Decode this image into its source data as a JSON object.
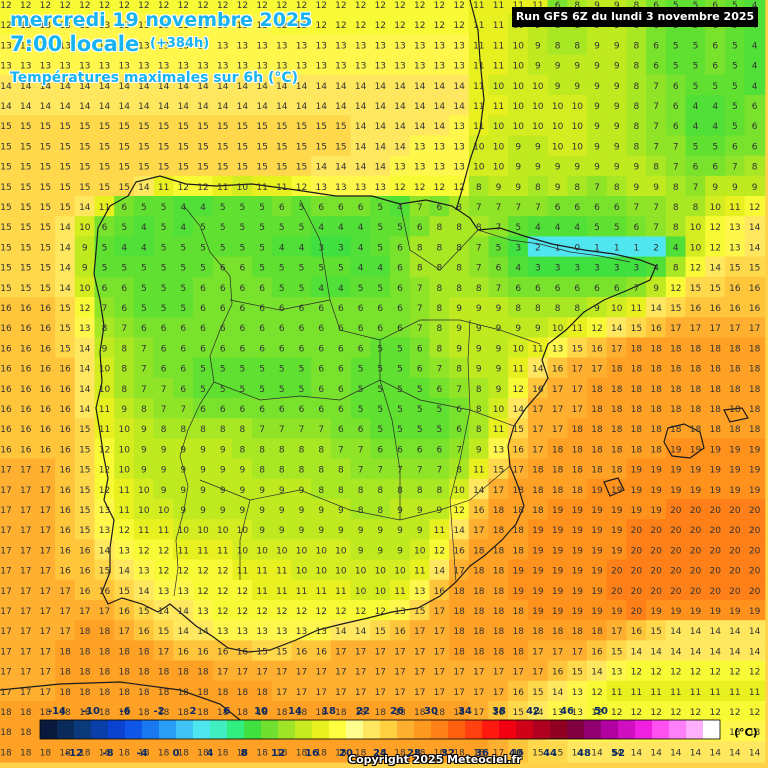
{
  "header": {
    "date": "mercredi 19 novembre 2025",
    "local_time": "7:00 locale",
    "lead_time": "(+384h)",
    "parameter": "Températures maximales sur 6h (°C)"
  },
  "run_info": "Run GFS 6Z du lundi 3 novembre 2025",
  "copyright": "Copyright 2025 Meteociel.fr",
  "legend": {
    "unit": "(°C)",
    "top_labels": [
      "-14",
      "-10",
      "-6",
      "-2",
      "2",
      "6",
      "10",
      "14",
      "18",
      "22",
      "26",
      "30",
      "34",
      "38",
      "42",
      "46",
      "50"
    ],
    "bottom_labels": [
      "-12",
      "-8",
      "-4",
      "0",
      "4",
      "8",
      "12",
      "16",
      "20",
      "24",
      "28",
      "32",
      "36",
      "40",
      "44",
      "48",
      "52"
    ],
    "colors": [
      "#0a1a3c",
      "#0a2a5a",
      "#0a3a7a",
      "#0a3ea8",
      "#0b43d0",
      "#1056e8",
      "#1a78f0",
      "#2a9ef4",
      "#40c4f6",
      "#50e6f0",
      "#40eec0",
      "#30ee80",
      "#40e040",
      "#70e030",
      "#a0e428",
      "#c8ea20",
      "#e8f020",
      "#ffff40",
      "#ffff90",
      "#ffe860",
      "#ffd040",
      "#ffb030",
      "#ff9a20",
      "#ff8018",
      "#ff6010",
      "#ff4010",
      "#ff1a10",
      "#f00010",
      "#d00018",
      "#b00020",
      "#900020",
      "#800040",
      "#900070",
      "#b000a0",
      "#d010c0",
      "#f020e0",
      "#ff50f0",
      "#ff80f8",
      "#ffb0fc",
      "#ffffff"
    ]
  },
  "colormap": {
    "stops": [
      [
        0,
        "#30ee80"
      ],
      [
        3,
        "#40e040"
      ],
      [
        5,
        "#60e030"
      ],
      [
        7,
        "#90e428"
      ],
      [
        9,
        "#c0ea20"
      ],
      [
        11,
        "#e8f020"
      ],
      [
        12.5,
        "#ffff40"
      ],
      [
        14,
        "#ffe860"
      ],
      [
        15.5,
        "#ffd040"
      ],
      [
        17,
        "#ffb030"
      ],
      [
        18.5,
        "#ff9a20"
      ],
      [
        20,
        "#ff8018"
      ]
    ],
    "cold_spot": "#50e6f0"
  },
  "map_values": [
    [
      12,
      12,
      12,
      12,
      12,
      12,
      12,
      12,
      12,
      12,
      12,
      12,
      12,
      12,
      12,
      12,
      12,
      12,
      12,
      12,
      12,
      12,
      12,
      12,
      11,
      11,
      11,
      11,
      6,
      8,
      9,
      9,
      8,
      6,
      5,
      5,
      6,
      5,
      4
    ],
    [
      12,
      13,
      13,
      13,
      13,
      13,
      13,
      13,
      13,
      13,
      13,
      13,
      13,
      13,
      12,
      12,
      12,
      12,
      12,
      12,
      12,
      12,
      12,
      12,
      11,
      11,
      10,
      9,
      8,
      8,
      9,
      9,
      8,
      6,
      5,
      5,
      6,
      5,
      4
    ],
    [
      13,
      13,
      13,
      13,
      13,
      13,
      13,
      13,
      13,
      13,
      13,
      13,
      13,
      13,
      13,
      13,
      13,
      13,
      13,
      13,
      13,
      13,
      13,
      13,
      11,
      11,
      10,
      9,
      8,
      8,
      9,
      9,
      8,
      6,
      5,
      5,
      6,
      5,
      4
    ],
    [
      13,
      13,
      13,
      13,
      13,
      13,
      13,
      13,
      13,
      13,
      13,
      13,
      13,
      13,
      13,
      13,
      13,
      13,
      13,
      13,
      13,
      13,
      13,
      13,
      11,
      11,
      10,
      9,
      9,
      9,
      9,
      9,
      8,
      6,
      5,
      5,
      6,
      5,
      4
    ],
    [
      14,
      14,
      14,
      14,
      14,
      14,
      14,
      14,
      14,
      14,
      14,
      14,
      14,
      14,
      14,
      14,
      14,
      14,
      14,
      14,
      14,
      14,
      14,
      14,
      11,
      10,
      10,
      10,
      9,
      9,
      9,
      9,
      8,
      7,
      6,
      5,
      5,
      5,
      4
    ],
    [
      14,
      14,
      14,
      14,
      14,
      14,
      14,
      14,
      14,
      14,
      14,
      14,
      14,
      14,
      14,
      14,
      14,
      14,
      14,
      14,
      14,
      14,
      14,
      14,
      11,
      11,
      10,
      10,
      10,
      10,
      9,
      9,
      8,
      7,
      6,
      4,
      4,
      5,
      6
    ],
    [
      15,
      15,
      15,
      15,
      15,
      15,
      15,
      15,
      15,
      15,
      15,
      15,
      15,
      15,
      15,
      15,
      15,
      15,
      14,
      14,
      14,
      14,
      14,
      13,
      11,
      10,
      10,
      10,
      10,
      10,
      9,
      9,
      8,
      7,
      6,
      4,
      4,
      5,
      6
    ],
    [
      15,
      15,
      15,
      15,
      15,
      15,
      15,
      15,
      15,
      15,
      15,
      15,
      15,
      15,
      15,
      15,
      15,
      15,
      14,
      14,
      14,
      13,
      13,
      13,
      10,
      10,
      9,
      9,
      10,
      10,
      9,
      9,
      8,
      7,
      7,
      5,
      5,
      6,
      6
    ],
    [
      15,
      15,
      15,
      15,
      15,
      15,
      15,
      15,
      15,
      15,
      15,
      15,
      15,
      15,
      15,
      15,
      14,
      14,
      14,
      14,
      13,
      13,
      13,
      13,
      10,
      10,
      9,
      9,
      9,
      9,
      9,
      9,
      9,
      8,
      7,
      6,
      6,
      7,
      8
    ],
    [
      15,
      15,
      15,
      15,
      15,
      15,
      15,
      14,
      11,
      12,
      12,
      11,
      10,
      11,
      11,
      12,
      13,
      13,
      13,
      13,
      12,
      12,
      12,
      12,
      8,
      9,
      9,
      8,
      9,
      8,
      7,
      8,
      9,
      9,
      8,
      7,
      9,
      9,
      9
    ],
    [
      15,
      15,
      15,
      15,
      14,
      11,
      6,
      5,
      5,
      4,
      4,
      5,
      5,
      5,
      6,
      5,
      6,
      6,
      6,
      5,
      4,
      7,
      6,
      8,
      7,
      7,
      7,
      7,
      6,
      6,
      6,
      6,
      7,
      7,
      8,
      8,
      10,
      11,
      12
    ],
    [
      15,
      15,
      15,
      14,
      10,
      6,
      5,
      4,
      5,
      4,
      5,
      5,
      5,
      5,
      5,
      5,
      4,
      4,
      4,
      5,
      5,
      6,
      8,
      8,
      8,
      7,
      5,
      4,
      4,
      4,
      5,
      5,
      6,
      7,
      8,
      10,
      12,
      13,
      14
    ],
    [
      15,
      15,
      15,
      14,
      9,
      5,
      4,
      4,
      5,
      5,
      5,
      5,
      5,
      5,
      4,
      4,
      3,
      3,
      4,
      5,
      6,
      8,
      8,
      8,
      7,
      5,
      3,
      2,
      1,
      0,
      1,
      1,
      1,
      2,
      4,
      10,
      12,
      13,
      14
    ],
    [
      15,
      15,
      15,
      14,
      9,
      5,
      5,
      5,
      5,
      5,
      5,
      6,
      6,
      5,
      5,
      5,
      5,
      5,
      4,
      4,
      6,
      8,
      8,
      8,
      7,
      6,
      4,
      3,
      3,
      3,
      3,
      3,
      3,
      4,
      8,
      12,
      14,
      15,
      15
    ],
    [
      15,
      15,
      15,
      14,
      10,
      6,
      6,
      5,
      5,
      5,
      6,
      6,
      6,
      6,
      5,
      5,
      4,
      4,
      5,
      5,
      6,
      7,
      8,
      8,
      8,
      7,
      6,
      6,
      6,
      6,
      6,
      6,
      7,
      9,
      12,
      15,
      15,
      16,
      16
    ],
    [
      16,
      16,
      16,
      15,
      12,
      7,
      6,
      5,
      5,
      5,
      6,
      6,
      6,
      6,
      6,
      6,
      6,
      6,
      6,
      6,
      6,
      7,
      8,
      9,
      9,
      9,
      8,
      8,
      8,
      8,
      9,
      10,
      11,
      14,
      15,
      16,
      16,
      16,
      16
    ],
    [
      16,
      16,
      16,
      15,
      13,
      8,
      7,
      6,
      6,
      6,
      6,
      6,
      6,
      6,
      6,
      6,
      6,
      6,
      6,
      6,
      6,
      7,
      8,
      9,
      9,
      9,
      9,
      9,
      10,
      11,
      12,
      14,
      15,
      16,
      17,
      17,
      17,
      17,
      17
    ],
    [
      16,
      16,
      16,
      15,
      14,
      9,
      8,
      7,
      6,
      6,
      6,
      6,
      6,
      6,
      6,
      6,
      6,
      6,
      6,
      5,
      5,
      6,
      8,
      9,
      9,
      9,
      10,
      11,
      13,
      15,
      16,
      17,
      18,
      18,
      18,
      18,
      18,
      18,
      18
    ],
    [
      16,
      16,
      16,
      16,
      14,
      10,
      8,
      7,
      6,
      6,
      5,
      5,
      5,
      5,
      5,
      5,
      6,
      6,
      5,
      5,
      5,
      6,
      7,
      8,
      9,
      9,
      11,
      14,
      16,
      17,
      17,
      18,
      18,
      18,
      18,
      18,
      18,
      18,
      18
    ],
    [
      16,
      16,
      16,
      16,
      14,
      10,
      8,
      7,
      7,
      6,
      5,
      5,
      5,
      5,
      5,
      5,
      6,
      6,
      5,
      5,
      5,
      5,
      6,
      7,
      8,
      9,
      12,
      16,
      17,
      17,
      18,
      18,
      18,
      18,
      18,
      18,
      18,
      18,
      18
    ],
    [
      16,
      16,
      16,
      16,
      14,
      11,
      9,
      8,
      7,
      7,
      6,
      6,
      6,
      6,
      6,
      6,
      6,
      6,
      5,
      5,
      5,
      5,
      5,
      6,
      8,
      10,
      14,
      17,
      17,
      17,
      18,
      18,
      18,
      18,
      18,
      18,
      18,
      18,
      18
    ],
    [
      16,
      16,
      16,
      16,
      15,
      11,
      10,
      9,
      8,
      8,
      8,
      8,
      8,
      7,
      7,
      7,
      7,
      6,
      6,
      5,
      5,
      5,
      5,
      6,
      8,
      11,
      15,
      17,
      17,
      18,
      18,
      18,
      18,
      18,
      18,
      18,
      18,
      18,
      18
    ],
    [
      16,
      16,
      16,
      16,
      15,
      12,
      10,
      9,
      9,
      9,
      9,
      9,
      8,
      8,
      8,
      8,
      8,
      7,
      7,
      6,
      6,
      6,
      6,
      7,
      9,
      13,
      16,
      17,
      18,
      18,
      18,
      18,
      18,
      18,
      19,
      19,
      19,
      19,
      19
    ],
    [
      17,
      17,
      17,
      16,
      15,
      12,
      10,
      9,
      9,
      9,
      9,
      9,
      9,
      8,
      8,
      8,
      8,
      8,
      7,
      7,
      7,
      7,
      7,
      8,
      11,
      15,
      17,
      18,
      18,
      18,
      18,
      18,
      19,
      19,
      19,
      19,
      19,
      19,
      19
    ],
    [
      17,
      17,
      17,
      16,
      15,
      12,
      11,
      10,
      9,
      9,
      9,
      9,
      9,
      9,
      9,
      9,
      8,
      8,
      8,
      8,
      8,
      8,
      8,
      10,
      14,
      17,
      18,
      18,
      18,
      18,
      19,
      19,
      19,
      19,
      19,
      19,
      19,
      19,
      19
    ],
    [
      17,
      17,
      17,
      16,
      15,
      13,
      11,
      10,
      10,
      9,
      9,
      9,
      9,
      9,
      9,
      9,
      9,
      9,
      8,
      8,
      9,
      9,
      9,
      12,
      16,
      18,
      18,
      18,
      19,
      19,
      19,
      19,
      19,
      19,
      20,
      20,
      20,
      20,
      20
    ],
    [
      17,
      17,
      17,
      16,
      15,
      13,
      12,
      11,
      11,
      10,
      10,
      10,
      10,
      9,
      9,
      9,
      9,
      9,
      9,
      9,
      9,
      9,
      11,
      14,
      17,
      18,
      18,
      19,
      19,
      19,
      19,
      19,
      20,
      20,
      20,
      20,
      20,
      20,
      20
    ],
    [
      17,
      17,
      17,
      16,
      16,
      14,
      13,
      12,
      12,
      11,
      11,
      11,
      10,
      10,
      10,
      10,
      10,
      10,
      9,
      9,
      9,
      10,
      12,
      16,
      18,
      18,
      18,
      19,
      19,
      19,
      19,
      19,
      20,
      20,
      20,
      20,
      20,
      20,
      20
    ],
    [
      17,
      17,
      17,
      16,
      16,
      15,
      14,
      13,
      12,
      12,
      12,
      12,
      11,
      11,
      11,
      10,
      10,
      10,
      10,
      10,
      10,
      11,
      14,
      17,
      18,
      18,
      19,
      19,
      19,
      19,
      19,
      20,
      20,
      20,
      20,
      20,
      20,
      20,
      20
    ],
    [
      17,
      17,
      17,
      17,
      16,
      16,
      15,
      14,
      13,
      13,
      12,
      12,
      12,
      11,
      11,
      11,
      11,
      11,
      10,
      10,
      11,
      13,
      16,
      18,
      18,
      18,
      19,
      19,
      19,
      19,
      19,
      20,
      20,
      20,
      20,
      20,
      20,
      20,
      20
    ],
    [
      17,
      17,
      17,
      17,
      17,
      17,
      16,
      15,
      14,
      14,
      13,
      12,
      12,
      12,
      12,
      12,
      12,
      12,
      12,
      12,
      13,
      15,
      17,
      18,
      18,
      18,
      18,
      19,
      19,
      19,
      19,
      19,
      20,
      19,
      19,
      19,
      19,
      19,
      19
    ],
    [
      17,
      17,
      17,
      17,
      18,
      18,
      17,
      16,
      15,
      14,
      14,
      13,
      13,
      13,
      13,
      13,
      13,
      14,
      14,
      15,
      16,
      17,
      17,
      18,
      18,
      18,
      18,
      18,
      18,
      18,
      18,
      17,
      16,
      15,
      14,
      14,
      14,
      14,
      14
    ],
    [
      17,
      17,
      17,
      18,
      18,
      18,
      18,
      18,
      17,
      16,
      16,
      16,
      16,
      15,
      15,
      16,
      16,
      17,
      17,
      17,
      17,
      17,
      17,
      18,
      18,
      18,
      18,
      17,
      17,
      17,
      16,
      15,
      14,
      14,
      14,
      14,
      14,
      14,
      14
    ],
    [
      17,
      17,
      17,
      18,
      18,
      18,
      18,
      18,
      18,
      18,
      18,
      17,
      17,
      17,
      17,
      17,
      17,
      17,
      17,
      17,
      17,
      17,
      17,
      17,
      17,
      17,
      17,
      17,
      16,
      15,
      14,
      13,
      12,
      12,
      12,
      12,
      12,
      12,
      12
    ],
    [
      17,
      17,
      17,
      18,
      18,
      18,
      18,
      18,
      18,
      18,
      18,
      18,
      18,
      18,
      17,
      17,
      17,
      17,
      17,
      17,
      17,
      17,
      17,
      17,
      17,
      17,
      16,
      15,
      14,
      13,
      12,
      11,
      11,
      11,
      11,
      11,
      11,
      11,
      11
    ],
    [
      18,
      18,
      18,
      18,
      18,
      18,
      18,
      18,
      18,
      18,
      18,
      18,
      18,
      18,
      18,
      18,
      18,
      18,
      18,
      18,
      18,
      18,
      18,
      18,
      17,
      16,
      15,
      14,
      13,
      13,
      12,
      12,
      12,
      12,
      12,
      12,
      12,
      12,
      12
    ],
    [
      18,
      18,
      18,
      18,
      18,
      18,
      18,
      18,
      18,
      18,
      18,
      18,
      18,
      18,
      18,
      18,
      18,
      18,
      18,
      18,
      18,
      18,
      18,
      18,
      18,
      17,
      16,
      15,
      14,
      13,
      13,
      13,
      13,
      13,
      13,
      13,
      13,
      13,
      13
    ],
    [
      18,
      18,
      18,
      18,
      18,
      18,
      18,
      18,
      18,
      18,
      18,
      18,
      18,
      18,
      18,
      18,
      18,
      18,
      18,
      18,
      18,
      18,
      18,
      18,
      18,
      17,
      16,
      15,
      15,
      14,
      14,
      14,
      14,
      14,
      14,
      14,
      14,
      14,
      14
    ]
  ]
}
